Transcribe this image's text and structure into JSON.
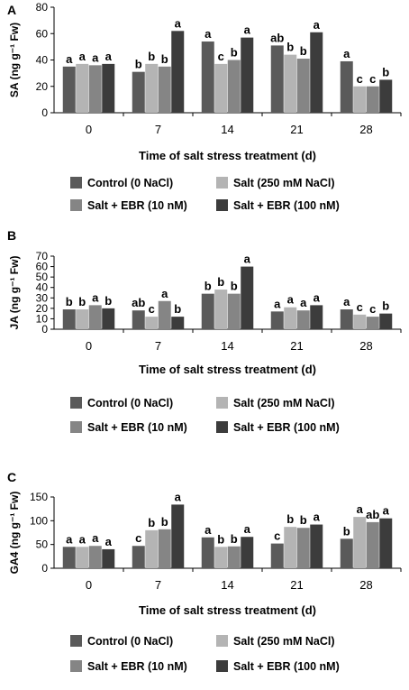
{
  "legend": [
    {
      "label": "Control (0 NaCl)",
      "color": "#5a5a5a"
    },
    {
      "label": "Salt (250 mM NaCl)",
      "color": "#b4b4b4"
    },
    {
      "label": "Salt + EBR (10 nM)",
      "color": "#858585"
    },
    {
      "label": "Salt + EBR (100 nM)",
      "color": "#3c3c3c"
    }
  ],
  "chart_data": [
    {
      "type": "bar",
      "panel": "A",
      "categories": [
        "0",
        "7",
        "14",
        "21",
        "28"
      ],
      "xlabel": "Time of salt stress treatment (d)",
      "ylabel": "SA (ng g⁻¹ Fw)",
      "ylim": [
        0,
        80
      ],
      "yticks": [
        0,
        20,
        40,
        60,
        80
      ],
      "legend_position": "bottom",
      "series": [
        {
          "name": "Control (0 NaCl)",
          "values": [
            35,
            31,
            54,
            51,
            39
          ],
          "letters": [
            "a",
            "b",
            "a",
            "ab",
            "a"
          ]
        },
        {
          "name": "Salt (250 mM NaCl)",
          "values": [
            37,
            37,
            37,
            44,
            20
          ],
          "letters": [
            "a",
            "b",
            "c",
            "b",
            "c"
          ]
        },
        {
          "name": "Salt + EBR (10 nM)",
          "values": [
            36,
            35,
            40,
            41,
            20
          ],
          "letters": [
            "a",
            "b",
            "b",
            "b",
            "c"
          ]
        },
        {
          "name": "Salt + EBR (100 nM)",
          "values": [
            37,
            62,
            57,
            61,
            25
          ],
          "letters": [
            "a",
            "a",
            "a",
            "a",
            "b"
          ]
        }
      ]
    },
    {
      "type": "bar",
      "panel": "B",
      "categories": [
        "0",
        "7",
        "14",
        "21",
        "28"
      ],
      "xlabel": "Time of salt stress treatment (d)",
      "ylabel": "JA (ng g⁻¹ Fw)",
      "ylim": [
        0,
        70
      ],
      "yticks": [
        0,
        10,
        20,
        30,
        40,
        50,
        60,
        70
      ],
      "legend_position": "bottom",
      "series": [
        {
          "name": "Control (0 NaCl)",
          "values": [
            19,
            18,
            34,
            17,
            19
          ],
          "letters": [
            "b",
            "ab",
            "b",
            "a",
            "a"
          ]
        },
        {
          "name": "Salt (250 mM NaCl)",
          "values": [
            19,
            12,
            38,
            21,
            14
          ],
          "letters": [
            "b",
            "c",
            "b",
            "a",
            "c"
          ]
        },
        {
          "name": "Salt + EBR (10 nM)",
          "values": [
            23,
            27,
            34,
            18,
            12
          ],
          "letters": [
            "a",
            "a",
            "b",
            "a",
            "c"
          ]
        },
        {
          "name": "Salt + EBR (100 nM)",
          "values": [
            20,
            12,
            60,
            23,
            15
          ],
          "letters": [
            "b",
            "b",
            "a",
            "a",
            "b"
          ]
        }
      ]
    },
    {
      "type": "bar",
      "panel": "C",
      "categories": [
        "0",
        "7",
        "14",
        "21",
        "28"
      ],
      "xlabel": "Time of salt stress treatment (d)",
      "ylabel": "GA4 (ng g⁻¹ Fw)",
      "ylim": [
        0,
        150
      ],
      "yticks": [
        0,
        50,
        100,
        150
      ],
      "legend_position": "bottom",
      "series": [
        {
          "name": "Control (0 NaCl)",
          "values": [
            45,
            47,
            65,
            52,
            62
          ],
          "letters": [
            "a",
            "c",
            "a",
            "c",
            "b"
          ]
        },
        {
          "name": "Salt (250 mM NaCl)",
          "values": [
            45,
            80,
            45,
            87,
            108
          ],
          "letters": [
            "a",
            "b",
            "b",
            "b",
            "a"
          ]
        },
        {
          "name": "Salt + EBR (10 nM)",
          "values": [
            47,
            82,
            46,
            85,
            97
          ],
          "letters": [
            "a",
            "b",
            "b",
            "b",
            "ab"
          ]
        },
        {
          "name": "Salt + EBR (100 nM)",
          "values": [
            40,
            134,
            66,
            92,
            105
          ],
          "letters": [
            "a",
            "a",
            "a",
            "a",
            "a"
          ]
        }
      ]
    }
  ]
}
